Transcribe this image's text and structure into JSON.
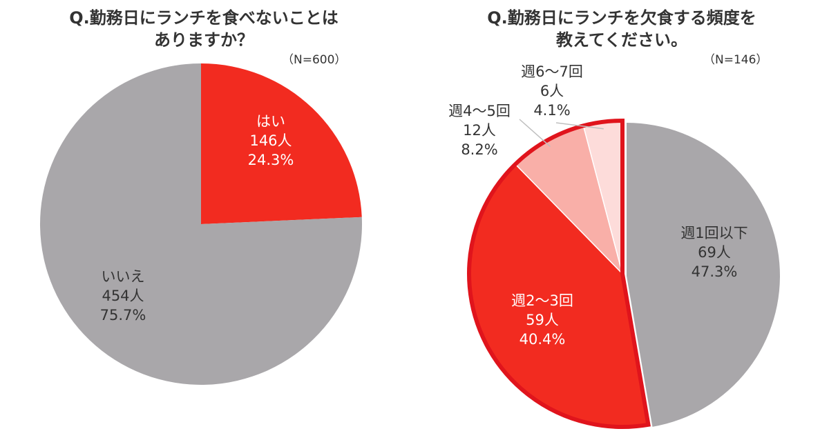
{
  "chart_data": [
    {
      "type": "pie",
      "title_lines": [
        "Q.勤務日にランチを食べないことは",
        "ありますか？"
      ],
      "n_label": "（N=600）",
      "slices": [
        {
          "label": "はい",
          "count": "146人",
          "percent": "24.3%",
          "value": 24.3,
          "color": "#F22B20"
        },
        {
          "label": "いいえ",
          "count": "454人",
          "percent": "75.7%",
          "value": 75.7,
          "color": "#A9A7AA"
        }
      ]
    },
    {
      "type": "pie",
      "title_lines": [
        "Q.勤務日にランチを欠食する頻度を",
        "教えてください。"
      ],
      "n_label": "（N=146）",
      "slices": [
        {
          "label": "週1回以下",
          "count": "69人",
          "percent": "47.3%",
          "value": 47.3,
          "color": "#A9A7AA"
        },
        {
          "label": "週2～3回",
          "count": "59人",
          "percent": "40.4%",
          "value": 40.4,
          "color": "#F22B20"
        },
        {
          "label": "週4～5回",
          "count": "12人",
          "percent": "8.2%",
          "value": 8.2,
          "color": "#F9AFA8"
        },
        {
          "label": "週6～7回",
          "count": "6人",
          "percent": "4.1%",
          "value": 4.1,
          "color": "#FDDCDA"
        }
      ],
      "highlight_color": "#E0141C"
    }
  ]
}
